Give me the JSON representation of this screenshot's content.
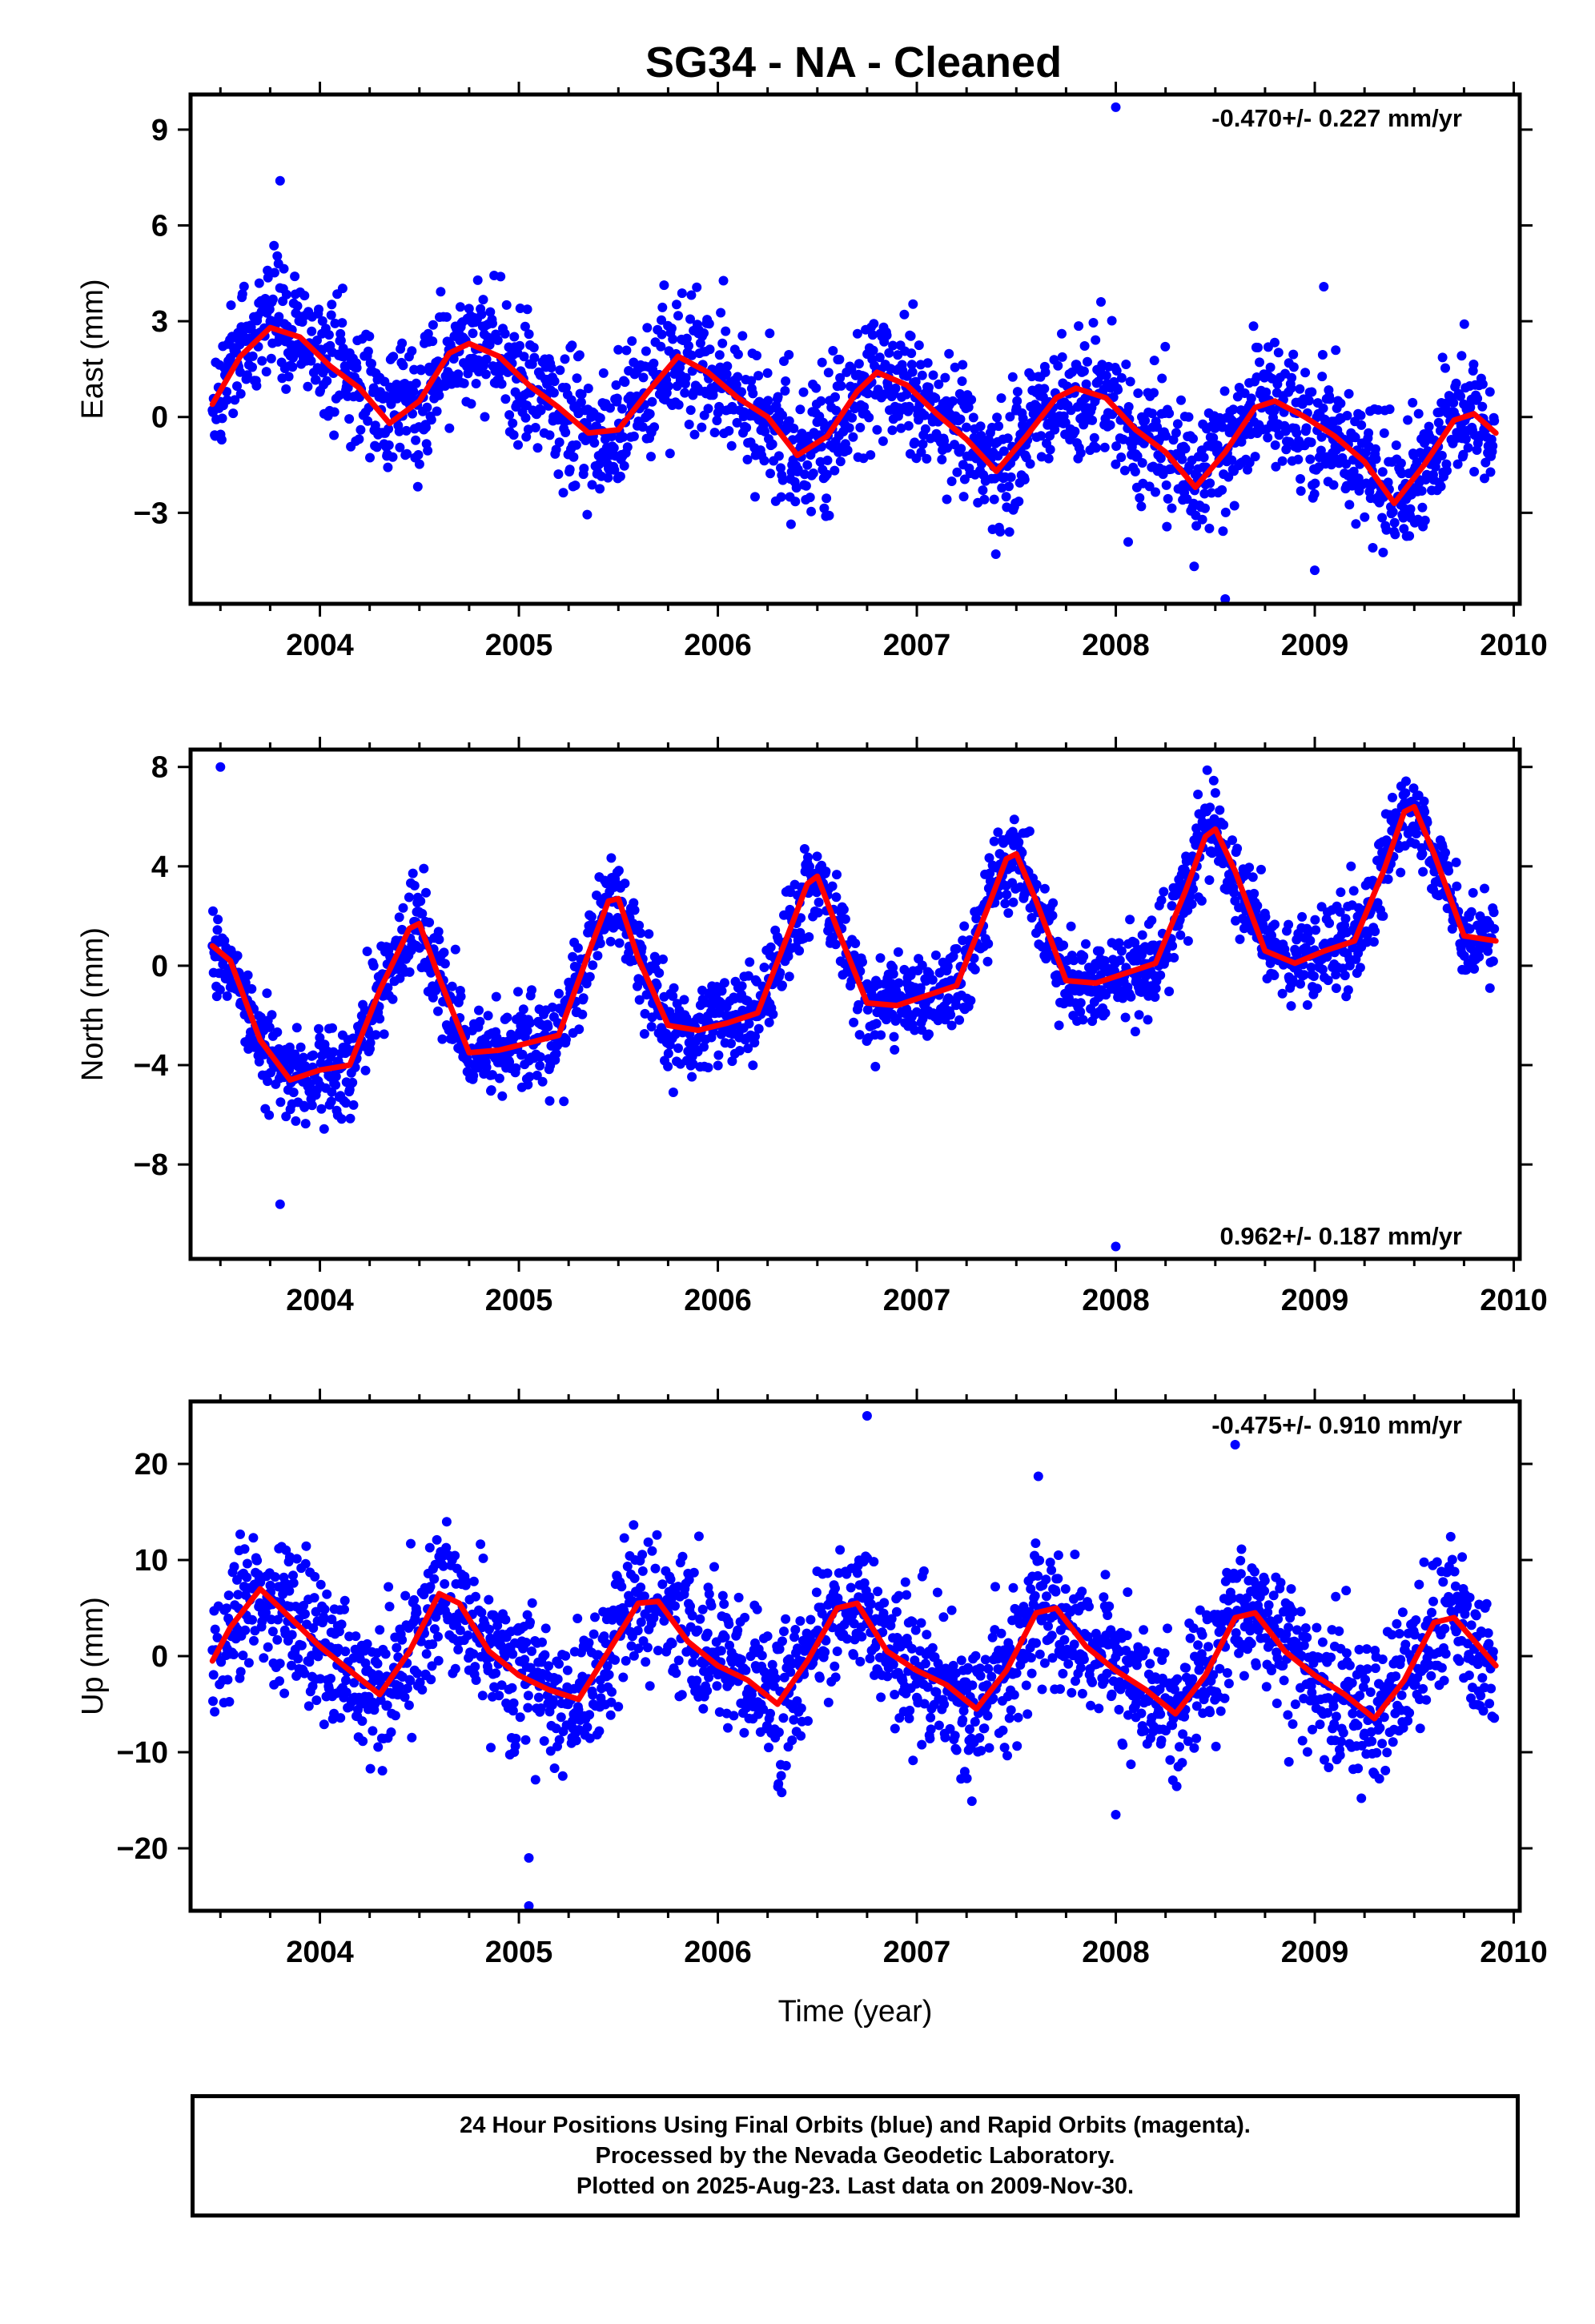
{
  "title": "SG34  - NA - Cleaned",
  "colors": {
    "points": "#0000ff",
    "fit": "#ff0000",
    "axes": "#000000"
  },
  "footer": {
    "line1": "24 Hour Positions Using Final Orbits (blue) and Rapid Orbits (magenta).",
    "line2": "Processed by the Nevada Geodetic Laboratory.",
    "line3": "Plotted on 2025-Aug-23. Last data on 2009-Nov-30."
  },
  "chart_data": [
    {
      "type": "scatter",
      "component": "east",
      "ylabel": "East (mm)",
      "xlabel": "",
      "xlim": [
        2003.35,
        2010.03
      ],
      "ylim": [
        -5.85,
        10.1
      ],
      "xticks": [
        2004,
        2005,
        2006,
        2007,
        2008,
        2009,
        2010
      ],
      "yticks": [
        -3,
        0,
        3,
        6,
        9
      ],
      "rate_text": "-0.470+/- 0.227 mm/yr",
      "rate_position": "top-right",
      "data_start": 2003.46,
      "data_end": 2009.91,
      "series": [
        {
          "kind": "fit",
          "x": [
            2003.46,
            2003.6,
            2003.75,
            2003.9,
            2004.05,
            2004.2,
            2004.35,
            2004.5,
            2004.65,
            2004.75,
            2004.9,
            2005.05,
            2005.2,
            2005.35,
            2005.5,
            2005.65,
            2005.8,
            2005.95,
            2006.1,
            2006.25,
            2006.4,
            2006.55,
            2006.7,
            2006.8,
            2006.95,
            2007.1,
            2007.25,
            2007.4,
            2007.55,
            2007.7,
            2007.8,
            2007.95,
            2008.1,
            2008.25,
            2008.4,
            2008.55,
            2008.7,
            2008.8,
            2008.95,
            2009.1,
            2009.25,
            2009.4,
            2009.55,
            2009.7,
            2009.8,
            2009.91
          ],
          "y": [
            0.4,
            1.9,
            2.8,
            2.5,
            1.6,
            0.9,
            -0.2,
            0.5,
            2.0,
            2.3,
            1.9,
            1.0,
            0.3,
            -0.5,
            -0.4,
            0.8,
            1.9,
            1.4,
            0.6,
            0.0,
            -1.2,
            -0.6,
            0.8,
            1.4,
            1.0,
            0.1,
            -0.7,
            -1.7,
            -0.6,
            0.6,
            0.9,
            0.6,
            -0.4,
            -1.1,
            -2.2,
            -1.1,
            0.3,
            0.5,
            0.0,
            -0.6,
            -1.4,
            -2.7,
            -1.5,
            -0.1,
            0.1,
            -0.5
          ]
        },
        {
          "kind": "daily",
          "seasonal_amplitude": 1.6,
          "noise": 1.0,
          "outliers": [
            [
              2008.0,
              9.7
            ],
            [
              2008.55,
              -5.7
            ],
            [
              2009.0,
              -4.8
            ],
            [
              2003.8,
              7.4
            ]
          ]
        }
      ]
    },
    {
      "type": "scatter",
      "component": "north",
      "ylabel": "North (mm)",
      "xlabel": "",
      "xlim": [
        2003.35,
        2010.03
      ],
      "ylim": [
        -11.8,
        8.7
      ],
      "xticks": [
        2004,
        2005,
        2006,
        2007,
        2008,
        2009,
        2010
      ],
      "yticks": [
        -8,
        -4,
        0,
        4,
        8
      ],
      "rate_text": "0.962+/- 0.187 mm/yr",
      "rate_position": "bottom-right",
      "data_start": 2003.46,
      "data_end": 2009.91,
      "series": [
        {
          "kind": "fit",
          "x": [
            2003.46,
            2003.55,
            2003.7,
            2003.85,
            2004.0,
            2004.15,
            2004.3,
            2004.45,
            2004.5,
            2004.6,
            2004.75,
            2004.9,
            2005.05,
            2005.2,
            2005.35,
            2005.45,
            2005.5,
            2005.6,
            2005.75,
            2005.9,
            2006.05,
            2006.2,
            2006.35,
            2006.45,
            2006.5,
            2006.6,
            2006.75,
            2006.9,
            2007.05,
            2007.2,
            2007.35,
            2007.45,
            2007.5,
            2007.6,
            2007.75,
            2007.9,
            2008.05,
            2008.2,
            2008.35,
            2008.45,
            2008.5,
            2008.6,
            2008.75,
            2008.9,
            2009.05,
            2009.2,
            2009.35,
            2009.45,
            2009.5,
            2009.6,
            2009.75,
            2009.91
          ],
          "y": [
            0.8,
            0.2,
            -3.0,
            -4.6,
            -4.2,
            -4.0,
            -1.0,
            1.5,
            1.7,
            -0.5,
            -3.5,
            -3.4,
            -3.1,
            -2.8,
            0.5,
            2.6,
            2.7,
            0.3,
            -2.4,
            -2.6,
            -2.3,
            -1.9,
            1.2,
            3.3,
            3.6,
            1.5,
            -1.5,
            -1.6,
            -1.2,
            -0.8,
            2.2,
            4.3,
            4.5,
            2.6,
            -0.6,
            -0.7,
            -0.3,
            0.1,
            3.0,
            5.2,
            5.5,
            3.8,
            0.6,
            0.1,
            0.6,
            1.0,
            3.9,
            6.2,
            6.4,
            4.5,
            1.2,
            1.0
          ]
        },
        {
          "kind": "daily",
          "seasonal_amplitude": 3.0,
          "noise": 0.9,
          "outliers": [
            [
              2008.0,
              -11.3
            ],
            [
              2003.8,
              -9.6
            ],
            [
              2003.5,
              8.0
            ],
            [
              2007.15,
              -0.2
            ]
          ]
        }
      ]
    },
    {
      "type": "scatter",
      "component": "up",
      "ylabel": "Up (mm)",
      "xlabel": "Time (year)",
      "xlim": [
        2003.35,
        2010.03
      ],
      "ylim": [
        -26.5,
        26.5
      ],
      "xticks": [
        2004,
        2005,
        2006,
        2007,
        2008,
        2009,
        2010
      ],
      "yticks": [
        -20,
        -10,
        0,
        10,
        20
      ],
      "rate_text": "-0.475+/- 0.910 mm/yr",
      "rate_position": "top-right",
      "data_start": 2003.46,
      "data_end": 2009.91,
      "series": [
        {
          "kind": "fit",
          "x": [
            2003.46,
            2003.55,
            2003.7,
            2003.85,
            2004.0,
            2004.15,
            2004.3,
            2004.45,
            2004.6,
            2004.7,
            2004.85,
            2005.0,
            2005.15,
            2005.3,
            2005.45,
            2005.6,
            2005.7,
            2005.85,
            2006.0,
            2006.15,
            2006.3,
            2006.45,
            2006.6,
            2006.7,
            2006.85,
            2007.0,
            2007.15,
            2007.3,
            2007.45,
            2007.6,
            2007.7,
            2007.85,
            2008.0,
            2008.15,
            2008.3,
            2008.45,
            2008.6,
            2008.7,
            2008.85,
            2009.0,
            2009.15,
            2009.3,
            2009.45,
            2009.6,
            2009.7,
            2009.91
          ],
          "y": [
            -0.5,
            3.0,
            7.0,
            4.0,
            1.0,
            -1.5,
            -4.0,
            0.5,
            6.5,
            5.5,
            0.5,
            -2.0,
            -3.5,
            -4.5,
            0.5,
            5.5,
            5.7,
            1.5,
            -1.0,
            -2.5,
            -5.0,
            -0.5,
            5.0,
            5.5,
            0.5,
            -1.5,
            -3.0,
            -5.5,
            -1.5,
            4.5,
            5.0,
            1.0,
            -1.5,
            -3.5,
            -6.0,
            -2.0,
            4.0,
            4.5,
            0.5,
            -2.0,
            -4.0,
            -6.5,
            -2.5,
            3.5,
            4.0,
            -1.0
          ]
        },
        {
          "kind": "daily",
          "seasonal_amplitude": 5.5,
          "noise": 3.6,
          "outliers": [
            [
              2006.75,
              25.0
            ],
            [
              2005.05,
              -26.0
            ],
            [
              2008.6,
              22.0
            ],
            [
              2005.05,
              -21.0
            ],
            [
              2008.0,
              -16.5
            ]
          ]
        }
      ]
    }
  ]
}
